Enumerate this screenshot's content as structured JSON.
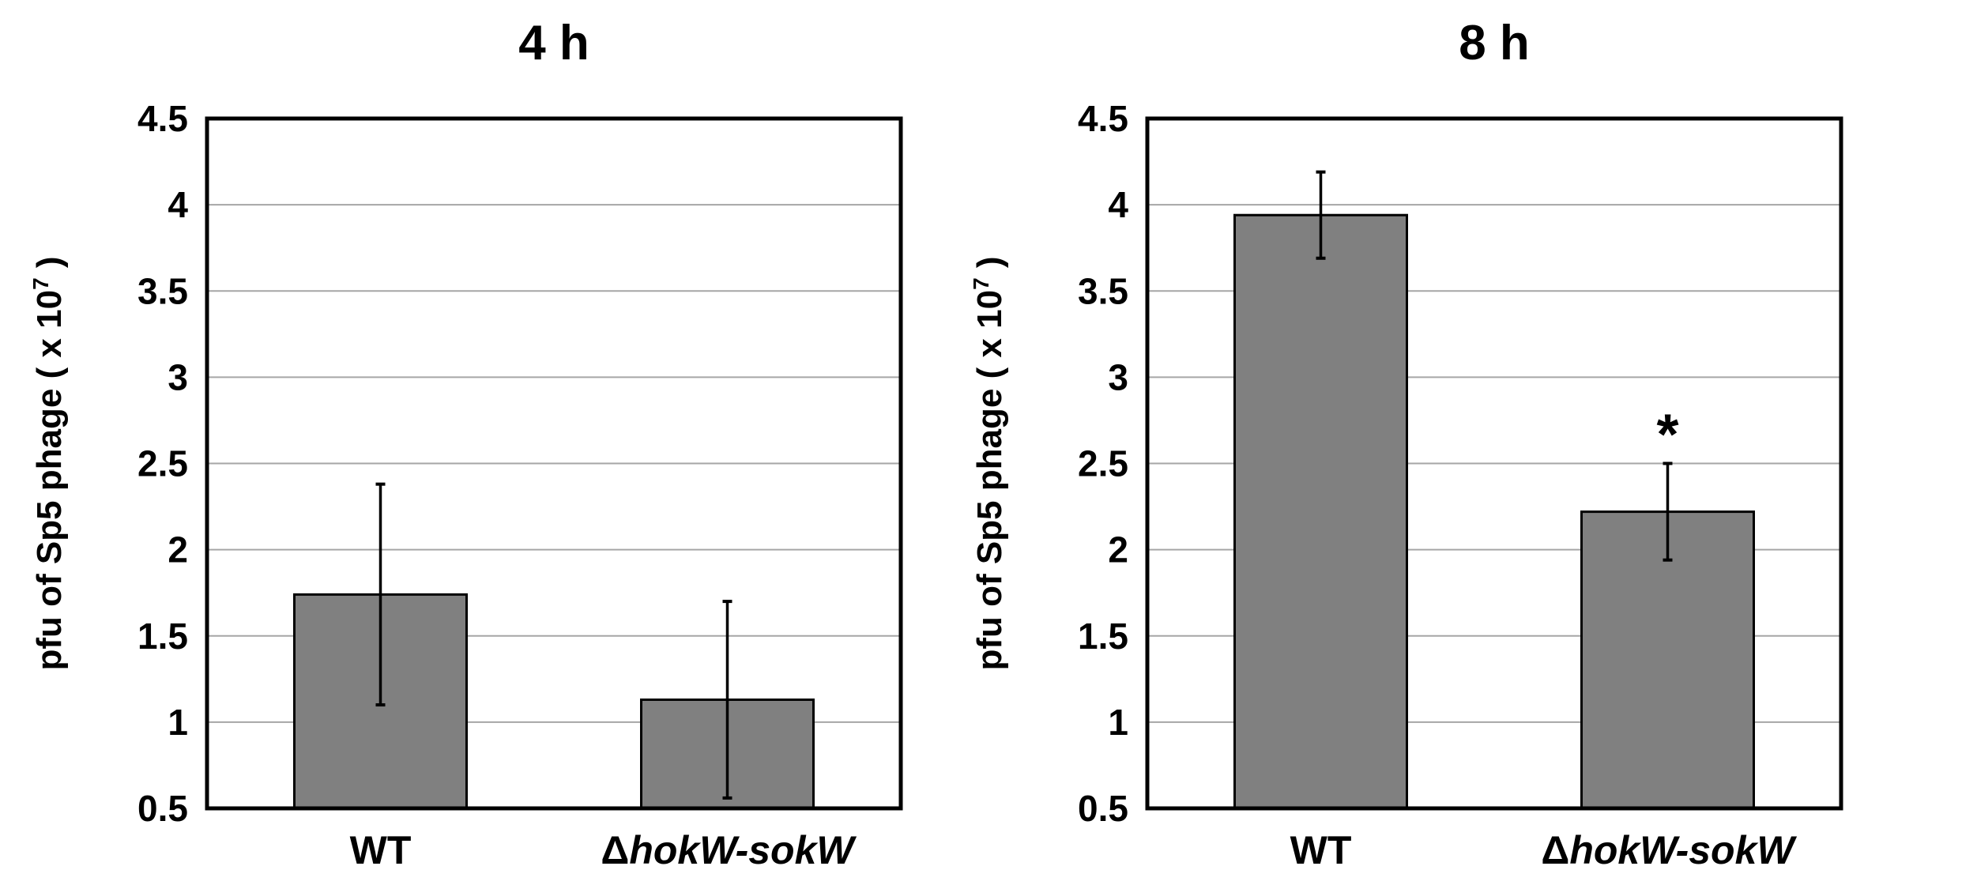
{
  "chart_data": [
    {
      "type": "bar",
      "title": "4 h",
      "categories": [
        "WT",
        "ΔhokW-sokW"
      ],
      "category_parts": [
        {
          "plain": "WT",
          "italic": ""
        },
        {
          "plain": "Δ",
          "italic": "hokW-sokW"
        }
      ],
      "values": [
        1.74,
        1.13
      ],
      "error": [
        0.64,
        0.57
      ],
      "significance": [
        "",
        ""
      ],
      "ylabel": {
        "main": "pfu of Sp5 phage ( x 10",
        "sup": "7",
        "end": " )"
      },
      "ylim": [
        0.5,
        4.5
      ],
      "yticks": [
        "0.5",
        "1",
        "1.5",
        "2",
        "2.5",
        "3",
        "3.5",
        "4",
        "4.5"
      ],
      "grid": true,
      "bar_color": "#808080"
    },
    {
      "type": "bar",
      "title": "8 h",
      "categories": [
        "WT",
        "ΔhokW-sokW"
      ],
      "category_parts": [
        {
          "plain": "WT",
          "italic": ""
        },
        {
          "plain": "Δ",
          "italic": "hokW-sokW"
        }
      ],
      "values": [
        3.94,
        2.22
      ],
      "error": [
        0.25,
        0.28
      ],
      "significance": [
        "",
        "*"
      ],
      "ylabel": {
        "main": "pfu of Sp5 phage ( x 10",
        "sup": "7",
        "end": " )"
      },
      "ylim": [
        0.5,
        4.5
      ],
      "yticks": [
        "0.5",
        "1",
        "1.5",
        "2",
        "2.5",
        "3",
        "3.5",
        "4",
        "4.5"
      ],
      "grid": true,
      "bar_color": "#808080"
    }
  ]
}
